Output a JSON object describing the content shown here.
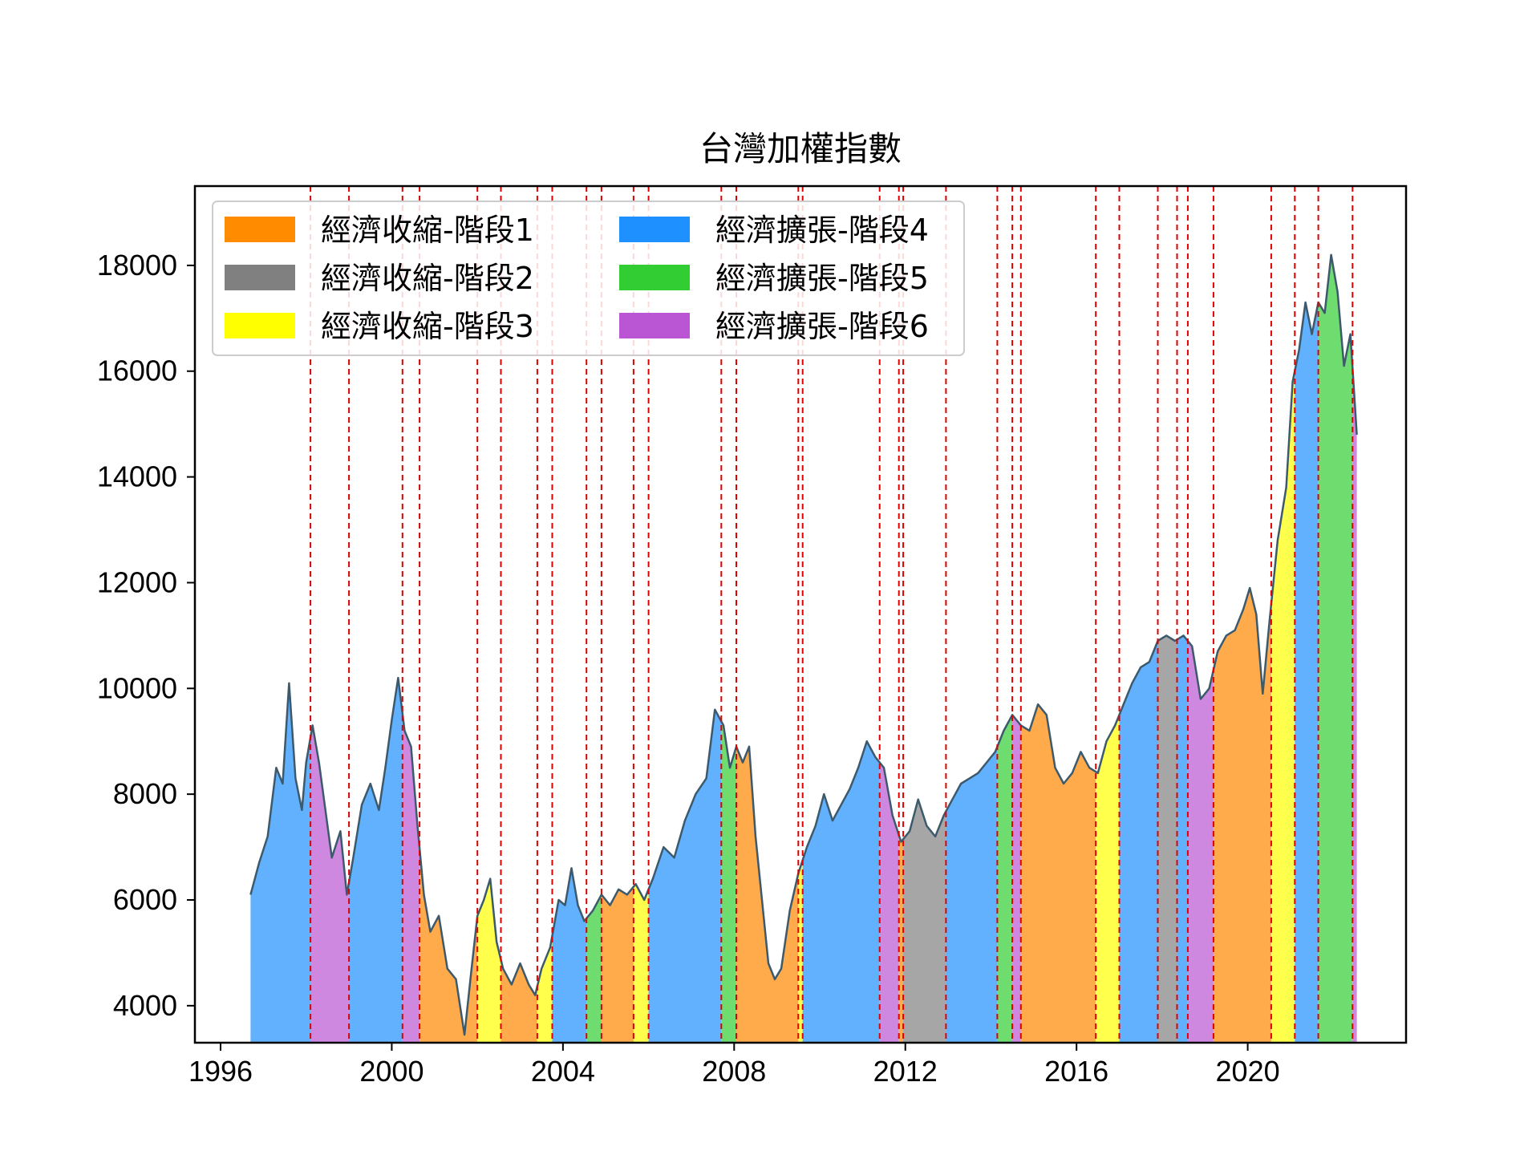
{
  "chart_data": {
    "type": "area",
    "title": "台灣加權指數",
    "xlabel": "",
    "ylabel": "",
    "xlim": [
      1995.4,
      2023.7
    ],
    "ylim": [
      3300,
      19500
    ],
    "x_ticks": [
      1996,
      2000,
      2004,
      2008,
      2012,
      2016,
      2020
    ],
    "y_ticks": [
      4000,
      6000,
      8000,
      10000,
      12000,
      14000,
      16000,
      18000
    ],
    "grid": false,
    "legend_position": "top-left",
    "legend_columns": 2,
    "line_color": "#3d5a6c",
    "divider_color": "#e00000",
    "phases": [
      {
        "key": "c1",
        "name": "經濟收縮-階段1",
        "color": "#ff8c00",
        "fill": "#ffab4c"
      },
      {
        "key": "c2",
        "name": "經濟收縮-階段2",
        "color": "#808080",
        "fill": "#a6a6a6"
      },
      {
        "key": "c3",
        "name": "經濟收縮-階段3",
        "color": "#ffff00",
        "fill": "#ffff4c"
      },
      {
        "key": "e4",
        "name": "經濟擴張-階段4",
        "color": "#1e90ff",
        "fill": "#62b1ff"
      },
      {
        "key": "e5",
        "name": "經濟擴張-階段5",
        "color": "#32cd32",
        "fill": "#6fdc6f"
      },
      {
        "key": "e6",
        "name": "經濟擴張-階段6",
        "color": "#ba55d3",
        "fill": "#cf88e0"
      }
    ],
    "segments": [
      {
        "start": 1996.7,
        "end": 1998.1,
        "phase": "e4"
      },
      {
        "start": 1998.1,
        "end": 1999.0,
        "phase": "e6"
      },
      {
        "start": 1999.0,
        "end": 2000.25,
        "phase": "e4"
      },
      {
        "start": 2000.25,
        "end": 2000.65,
        "phase": "e6"
      },
      {
        "start": 2000.65,
        "end": 2002.0,
        "phase": "c1"
      },
      {
        "start": 2002.0,
        "end": 2002.55,
        "phase": "c3"
      },
      {
        "start": 2002.55,
        "end": 2003.4,
        "phase": "c1"
      },
      {
        "start": 2003.4,
        "end": 2003.75,
        "phase": "c3"
      },
      {
        "start": 2003.75,
        "end": 2004.55,
        "phase": "e4"
      },
      {
        "start": 2004.55,
        "end": 2004.9,
        "phase": "e5"
      },
      {
        "start": 2004.9,
        "end": 2005.65,
        "phase": "c1"
      },
      {
        "start": 2005.65,
        "end": 2006.0,
        "phase": "c3"
      },
      {
        "start": 2006.0,
        "end": 2007.7,
        "phase": "e4"
      },
      {
        "start": 2007.7,
        "end": 2008.05,
        "phase": "e5"
      },
      {
        "start": 2008.05,
        "end": 2009.5,
        "phase": "c1"
      },
      {
        "start": 2009.5,
        "end": 2009.6,
        "phase": "c3"
      },
      {
        "start": 2009.6,
        "end": 2011.4,
        "phase": "e4"
      },
      {
        "start": 2011.4,
        "end": 2011.85,
        "phase": "e6"
      },
      {
        "start": 2011.85,
        "end": 2011.95,
        "phase": "c1"
      },
      {
        "start": 2011.95,
        "end": 2012.95,
        "phase": "c2"
      },
      {
        "start": 2012.95,
        "end": 2014.15,
        "phase": "e4"
      },
      {
        "start": 2014.15,
        "end": 2014.5,
        "phase": "e5"
      },
      {
        "start": 2014.5,
        "end": 2014.7,
        "phase": "e6"
      },
      {
        "start": 2014.7,
        "end": 2016.45,
        "phase": "c1"
      },
      {
        "start": 2016.45,
        "end": 2017.0,
        "phase": "c3"
      },
      {
        "start": 2017.0,
        "end": 2017.9,
        "phase": "e4"
      },
      {
        "start": 2017.9,
        "end": 2018.35,
        "phase": "c2"
      },
      {
        "start": 2018.35,
        "end": 2018.6,
        "phase": "e4"
      },
      {
        "start": 2018.6,
        "end": 2019.2,
        "phase": "e6"
      },
      {
        "start": 2019.2,
        "end": 2020.55,
        "phase": "c1"
      },
      {
        "start": 2020.55,
        "end": 2021.1,
        "phase": "c3"
      },
      {
        "start": 2021.1,
        "end": 2021.65,
        "phase": "e4"
      },
      {
        "start": 2021.65,
        "end": 2022.45,
        "phase": "e5"
      },
      {
        "start": 2022.45,
        "end": 2022.55,
        "phase": "e6"
      }
    ],
    "boundaries": [
      1998.1,
      1999.0,
      2000.25,
      2000.65,
      2002.0,
      2002.55,
      2003.4,
      2003.75,
      2004.55,
      2004.9,
      2005.65,
      2006.0,
      2007.7,
      2008.05,
      2009.5,
      2009.6,
      2011.4,
      2011.85,
      2011.95,
      2012.95,
      2014.15,
      2014.5,
      2014.7,
      2016.45,
      2017.0,
      2017.9,
      2018.35,
      2018.6,
      2019.2,
      2020.55,
      2021.1,
      2021.65,
      2022.45
    ],
    "series": [
      {
        "x": [
          1996.7,
          1996.9,
          1997.1,
          1997.3,
          1997.45,
          1997.6,
          1997.75,
          1997.9,
          1998.0,
          1998.15,
          1998.3,
          1998.45,
          1998.6,
          1998.8,
          1998.95,
          1999.1,
          1999.3,
          1999.5,
          1999.7,
          1999.85,
          2000.0,
          2000.15,
          2000.3,
          2000.45,
          2000.6,
          2000.75,
          2000.9,
          2001.1,
          2001.3,
          2001.5,
          2001.7,
          2001.85,
          2002.0,
          2002.15,
          2002.3,
          2002.45,
          2002.6,
          2002.8,
          2003.0,
          2003.2,
          2003.35,
          2003.5,
          2003.7,
          2003.9,
          2004.05,
          2004.2,
          2004.35,
          2004.5,
          2004.7,
          2004.9,
          2005.1,
          2005.3,
          2005.5,
          2005.7,
          2005.9,
          2006.1,
          2006.35,
          2006.6,
          2006.85,
          2007.1,
          2007.35,
          2007.55,
          2007.75,
          2007.9,
          2008.05,
          2008.2,
          2008.35,
          2008.5,
          2008.65,
          2008.8,
          2008.95,
          2009.1,
          2009.3,
          2009.5,
          2009.7,
          2009.9,
          2010.1,
          2010.3,
          2010.5,
          2010.7,
          2010.9,
          2011.1,
          2011.3,
          2011.5,
          2011.7,
          2011.9,
          2012.1,
          2012.3,
          2012.5,
          2012.7,
          2012.9,
          2013.1,
          2013.3,
          2013.5,
          2013.7,
          2013.9,
          2014.1,
          2014.3,
          2014.5,
          2014.7,
          2014.9,
          2015.1,
          2015.3,
          2015.5,
          2015.7,
          2015.9,
          2016.1,
          2016.3,
          2016.5,
          2016.7,
          2016.9,
          2017.1,
          2017.3,
          2017.5,
          2017.7,
          2017.9,
          2018.1,
          2018.3,
          2018.5,
          2018.7,
          2018.9,
          2019.1,
          2019.3,
          2019.5,
          2019.7,
          2019.9,
          2020.05,
          2020.2,
          2020.35,
          2020.5,
          2020.7,
          2020.9,
          2021.05,
          2021.2,
          2021.35,
          2021.5,
          2021.65,
          2021.8,
          2021.95,
          2022.1,
          2022.25,
          2022.4,
          2022.55
        ],
        "y": [
          6100,
          6700,
          7200,
          8500,
          8200,
          10100,
          8300,
          7700,
          8600,
          9300,
          8600,
          7700,
          6800,
          7300,
          6100,
          6800,
          7800,
          8200,
          7700,
          8500,
          9400,
          10200,
          9200,
          8900,
          7400,
          6100,
          5400,
          5700,
          4700,
          4500,
          3450,
          4600,
          5700,
          6000,
          6400,
          5200,
          4700,
          4400,
          4800,
          4400,
          4200,
          4700,
          5100,
          6000,
          5900,
          6600,
          5900,
          5600,
          5800,
          6100,
          5900,
          6200,
          6100,
          6300,
          6000,
          6400,
          7000,
          6800,
          7500,
          8000,
          8300,
          9600,
          9300,
          8500,
          8900,
          8600,
          8900,
          7200,
          6000,
          4800,
          4500,
          4700,
          5800,
          6500,
          7000,
          7400,
          8000,
          7500,
          7800,
          8100,
          8500,
          9000,
          8700,
          8500,
          7600,
          7100,
          7300,
          7900,
          7400,
          7200,
          7600,
          7900,
          8200,
          8300,
          8400,
          8600,
          8800,
          9200,
          9500,
          9300,
          9200,
          9700,
          9500,
          8500,
          8200,
          8400,
          8800,
          8500,
          8400,
          9000,
          9300,
          9700,
          10100,
          10400,
          10500,
          10900,
          11000,
          10900,
          11000,
          10800,
          9800,
          10000,
          10700,
          11000,
          11100,
          11500,
          11900,
          11400,
          9900,
          11200,
          12800,
          13800,
          15800,
          16400,
          17300,
          16700,
          17300,
          17100,
          18200,
          17500,
          16100,
          16700,
          14800
        ]
      }
    ]
  }
}
